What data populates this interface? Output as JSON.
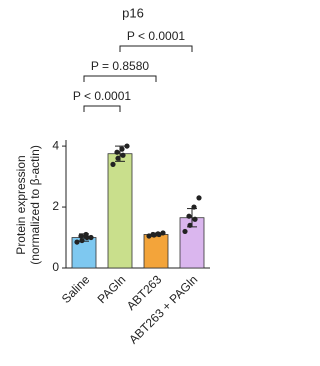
{
  "chart_data": {
    "type": "bar",
    "title": "p16",
    "y_label": [
      "Protein expression",
      "(normalized to β-actin)"
    ],
    "categories": [
      "Saline",
      "PAGln",
      "ABT263",
      "ABT263 + PAGln"
    ],
    "values": [
      1.0,
      3.75,
      1.1,
      1.65
    ],
    "errors": [
      0.12,
      0.25,
      0.05,
      0.3
    ],
    "points": [
      [
        0.85,
        0.9,
        1.0,
        1.05,
        1.1,
        1.0
      ],
      [
        3.4,
        3.6,
        3.7,
        3.8,
        3.9,
        4.0
      ],
      [
        1.05,
        1.08,
        1.1,
        1.1,
        1.12,
        1.15
      ],
      [
        1.2,
        1.4,
        1.6,
        1.7,
        2.0,
        2.3
      ]
    ],
    "colors": [
      "#7ec8f0",
      "#c9df8c",
      "#f3a43a",
      "#dab6ee"
    ],
    "ylim": [
      0,
      4.2
    ],
    "yticks": [
      0,
      2,
      4
    ],
    "annotations": [
      "P < 0.0001",
      "P = 0.8580",
      "P < 0.0001"
    ]
  }
}
